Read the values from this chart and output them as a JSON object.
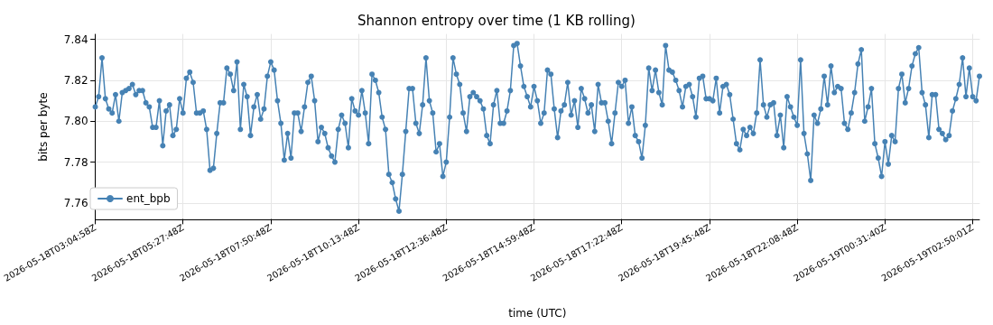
{
  "chart_data": {
    "type": "line",
    "title": "Shannon entropy over time (1 KB rolling)",
    "xlabel": "time (UTC)",
    "ylabel": "bits per byte",
    "categories": [
      "2026-05-18T03:04:58Z",
      null,
      null,
      null,
      null,
      null,
      null,
      null,
      null,
      null,
      null,
      null,
      null,
      null,
      null,
      null,
      null,
      null,
      null,
      null,
      null,
      null,
      null,
      null,
      null,
      null,
      "2026-05-18T05:27:48Z",
      null,
      null,
      null,
      null,
      null,
      null,
      null,
      null,
      null,
      null,
      null,
      null,
      null,
      null,
      null,
      null,
      null,
      null,
      null,
      null,
      null,
      null,
      null,
      null,
      null,
      "2026-05-18T07:50:48Z",
      null,
      null,
      null,
      null,
      null,
      null,
      null,
      null,
      null,
      null,
      null,
      null,
      null,
      null,
      null,
      null,
      null,
      null,
      null,
      null,
      null,
      null,
      null,
      null,
      null,
      "2026-05-18T10:13:48Z",
      null,
      null,
      null,
      null,
      null,
      null,
      null,
      null,
      null,
      null,
      null,
      null,
      null,
      null,
      null,
      null,
      null,
      null,
      null,
      null,
      null,
      null,
      null,
      null,
      null,
      "2026-05-18T12:36:48Z",
      null,
      null,
      null,
      null,
      null,
      null,
      null,
      null,
      null,
      null,
      null,
      null,
      null,
      null,
      null,
      null,
      null,
      null,
      null,
      null,
      null,
      null,
      null,
      null,
      null,
      "2026-05-18T14:59:48Z",
      null,
      null,
      null,
      null,
      null,
      null,
      null,
      null,
      null,
      null,
      null,
      null,
      null,
      null,
      null,
      null,
      null,
      null,
      null,
      null,
      null,
      null,
      null,
      null,
      null,
      "2026-05-18T17:22:48Z",
      null,
      null,
      null,
      null,
      null,
      null,
      null,
      null,
      null,
      null,
      null,
      null,
      null,
      null,
      null,
      null,
      null,
      null,
      null,
      null,
      null,
      null,
      null,
      null,
      null,
      "2026-05-18T19:45:48Z",
      null,
      null,
      null,
      null,
      null,
      null,
      null,
      null,
      null,
      null,
      null,
      null,
      null,
      null,
      null,
      null,
      null,
      null,
      null,
      null,
      null,
      null,
      null,
      null,
      null,
      "2026-05-18T22:08:48Z",
      null,
      null,
      null,
      null,
      null,
      null,
      null,
      null,
      null,
      null,
      null,
      null,
      null,
      null,
      null,
      null,
      null,
      null,
      null,
      null,
      null,
      null,
      null,
      null,
      null,
      "2026-05-19T00:31:40Z",
      null,
      null,
      null,
      null,
      null,
      null,
      null,
      null,
      null,
      null,
      null,
      null,
      null,
      null,
      null,
      null,
      null,
      null,
      null,
      null,
      null,
      null,
      null,
      null,
      null,
      "2026-05-19T02:50:01Z",
      null,
      null
    ],
    "series": [
      {
        "name": "ent_bpb",
        "color": "#4682b4",
        "values": [
          7.807,
          7.812,
          7.831,
          7.811,
          7.806,
          7.804,
          7.813,
          7.8,
          7.814,
          7.815,
          7.816,
          7.818,
          7.813,
          7.815,
          7.815,
          7.809,
          7.807,
          7.797,
          7.797,
          7.81,
          7.788,
          7.805,
          7.808,
          7.793,
          7.796,
          7.811,
          7.804,
          7.821,
          7.824,
          7.819,
          7.804,
          7.804,
          7.805,
          7.796,
          7.776,
          7.777,
          7.794,
          7.809,
          7.809,
          7.826,
          7.823,
          7.815,
          7.829,
          7.796,
          7.818,
          7.812,
          7.793,
          7.807,
          7.813,
          7.801,
          7.806,
          7.822,
          7.829,
          7.825,
          7.81,
          7.799,
          7.781,
          7.794,
          7.782,
          7.804,
          7.804,
          7.795,
          7.807,
          7.819,
          7.822,
          7.81,
          7.79,
          7.797,
          7.794,
          7.787,
          7.783,
          7.78,
          7.796,
          7.803,
          7.799,
          7.787,
          7.811,
          7.805,
          7.803,
          7.815,
          7.804,
          7.789,
          7.823,
          7.82,
          7.814,
          7.802,
          7.796,
          7.774,
          7.77,
          7.762,
          7.756,
          7.774,
          7.795,
          7.816,
          7.816,
          7.799,
          7.794,
          7.808,
          7.831,
          7.81,
          7.804,
          7.785,
          7.789,
          7.773,
          7.78,
          7.802,
          7.831,
          7.823,
          7.818,
          7.804,
          7.795,
          7.812,
          7.814,
          7.812,
          7.81,
          7.806,
          7.793,
          7.789,
          7.808,
          7.815,
          7.799,
          7.799,
          7.805,
          7.815,
          7.837,
          7.838,
          7.827,
          7.817,
          7.812,
          7.807,
          7.817,
          7.81,
          7.799,
          7.804,
          7.825,
          7.823,
          7.806,
          7.792,
          7.805,
          7.808,
          7.819,
          7.803,
          7.81,
          7.797,
          7.816,
          7.811,
          7.804,
          7.808,
          7.795,
          7.818,
          7.809,
          7.809,
          7.8,
          7.789,
          7.804,
          7.819,
          7.817,
          7.82,
          7.799,
          7.807,
          7.793,
          7.79,
          7.782,
          7.798,
          7.826,
          7.815,
          7.825,
          7.814,
          7.808,
          7.837,
          7.825,
          7.824,
          7.82,
          7.815,
          7.807,
          7.817,
          7.818,
          7.812,
          7.802,
          7.821,
          7.822,
          7.811,
          7.811,
          7.81,
          7.821,
          7.804,
          7.817,
          7.818,
          7.813,
          7.801,
          7.789,
          7.786,
          7.796,
          7.793,
          7.797,
          7.794,
          7.804,
          7.83,
          7.808,
          7.802,
          7.808,
          7.809,
          7.793,
          7.803,
          7.787,
          7.812,
          7.807,
          7.802,
          7.798,
          7.83,
          7.794,
          7.784,
          7.771,
          7.803,
          7.799,
          7.806,
          7.822,
          7.808,
          7.827,
          7.814,
          7.817,
          7.816,
          7.799,
          7.796,
          7.804,
          7.814,
          7.828,
          7.835,
          7.8,
          7.807,
          7.816,
          7.789,
          7.782,
          7.773,
          7.79,
          7.779,
          7.793,
          7.79,
          7.816,
          7.823,
          7.809,
          7.816,
          7.827,
          7.833,
          7.836,
          7.814,
          7.808,
          7.792,
          7.813,
          7.813,
          7.796,
          7.794,
          7.791,
          7.793,
          7.805,
          7.811,
          7.818,
          7.831,
          7.812,
          7.826,
          7.812,
          7.81,
          7.822
        ]
      }
    ],
    "ylim": [
      7.752,
      7.8425
    ],
    "yticks": [
      {
        "value": 7.76,
        "label": "7.76"
      },
      {
        "value": 7.78,
        "label": "7.78"
      },
      {
        "value": 7.8,
        "label": "7.80"
      },
      {
        "value": 7.82,
        "label": "7.82"
      },
      {
        "value": 7.84,
        "label": "7.84"
      }
    ],
    "grid": true,
    "legend": "bottom left",
    "marker": "circle",
    "line_style": "solid"
  }
}
